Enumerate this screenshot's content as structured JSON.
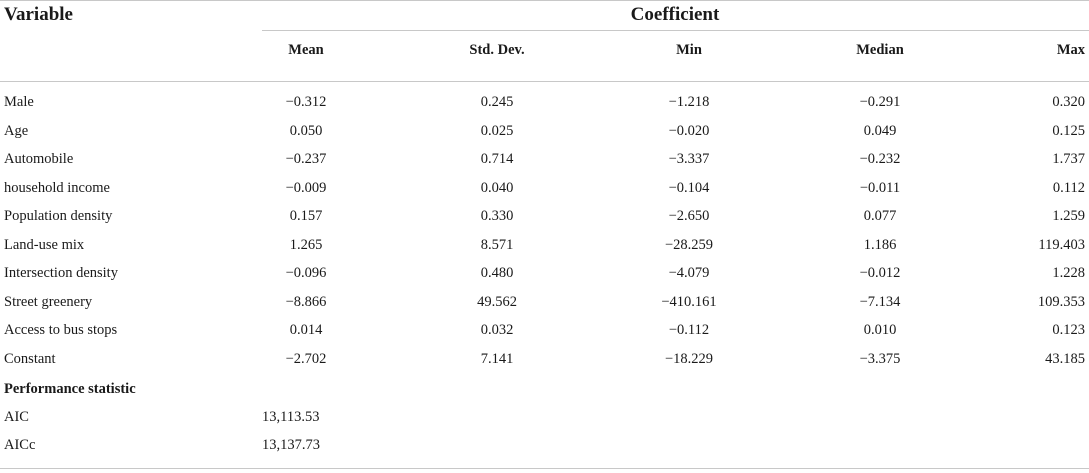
{
  "header": {
    "variable": "Variable",
    "coefficient": "Coefficient",
    "columns": [
      "Mean",
      "Std. Dev.",
      "Min",
      "Median",
      "Max"
    ]
  },
  "rows": [
    {
      "label": "Male",
      "values": [
        "−0.312",
        "0.245",
        "−1.218",
        "−0.291",
        "0.320"
      ]
    },
    {
      "label": "Age",
      "values": [
        "0.050",
        "0.025",
        "−0.020",
        "0.049",
        "0.125"
      ]
    },
    {
      "label": "Automobile",
      "values": [
        "−0.237",
        "0.714",
        "−3.337",
        "−0.232",
        "1.737"
      ]
    },
    {
      "label": "household income",
      "values": [
        "−0.009",
        "0.040",
        "−0.104",
        "−0.011",
        "0.112"
      ]
    },
    {
      "label": "Population density",
      "values": [
        "0.157",
        "0.330",
        "−2.650",
        "0.077",
        "1.259"
      ]
    },
    {
      "label": "Land-use mix",
      "values": [
        "1.265",
        "8.571",
        "−28.259",
        "1.186",
        "119.403"
      ]
    },
    {
      "label": "Intersection density",
      "values": [
        "−0.096",
        "0.480",
        "−4.079",
        "−0.012",
        "1.228"
      ]
    },
    {
      "label": "Street greenery",
      "values": [
        "−8.866",
        "49.562",
        "−410.161",
        "−7.134",
        "109.353"
      ]
    },
    {
      "label": "Access to bus stops",
      "values": [
        "0.014",
        "0.032",
        "−0.112",
        "0.010",
        "0.123"
      ]
    },
    {
      "label": "Constant",
      "values": [
        "−2.702",
        "7.141",
        "−18.229",
        "−3.375",
        "43.185"
      ]
    }
  ],
  "performance": {
    "heading": "Performance statistic",
    "rows": [
      {
        "label": "AIC",
        "value": "13,113.53"
      },
      {
        "label": "AICc",
        "value": "13,137.73"
      }
    ]
  }
}
